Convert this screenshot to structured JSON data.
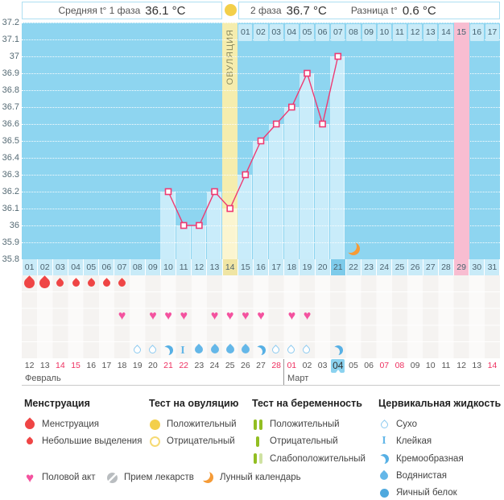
{
  "header": {
    "unit": "°C",
    "phase1_label": "Средняя t° 1 фаза",
    "phase1_value": "36.1 °C",
    "phase2_label": "2 фаза",
    "phase2_value": "36.7 °C",
    "diff_label": "Разница t°",
    "diff_value": "0.6 °C"
  },
  "colors": {
    "chart_bg": "#8ed5f0",
    "bar": "#c9ecfa",
    "bar_ovulation": "#fbf5d0",
    "band_ovulation": "#f5edae",
    "band_pink": "#f8bdd1",
    "cell": "#c9ebf8",
    "cell_today": "#7ecbea",
    "cell_ovulation": "#f0e5a4",
    "cell_pink": "#f8bdd1",
    "temp_line": "#ee3a72",
    "menses": "#ef4545",
    "heart": "#f4529f",
    "ovu_yellow": "#f3cf4a",
    "ovu_yellow_light": "#f6da74",
    "preg_green": "#92be22",
    "preg_green_light": "#cfe2a2",
    "cv_outline": "#8ccaf0",
    "cv_creamy": "#57b0e5",
    "cv_watery": "#64b7e8",
    "cv_egg": "#4fa9de",
    "moon": "#f59b37",
    "date_red": "#ee3060",
    "pill": "#b9bdc0",
    "today_date_bg": "#8bd2ef"
  },
  "chart_data": {
    "type": "line",
    "ylabel": "°C",
    "ylim": [
      35.8,
      37.2
    ],
    "ystep": 0.1,
    "grid": "dotted-white",
    "day_labels": [
      "01",
      "02",
      "03",
      "04",
      "05",
      "06",
      "07",
      "08",
      "09",
      "10",
      "11",
      "12",
      "13",
      "14",
      "15",
      "16",
      "17",
      "18",
      "19",
      "20",
      "21",
      "22",
      "23",
      "24",
      "25",
      "26",
      "27",
      "28",
      "29",
      "30",
      "31"
    ],
    "series": [
      {
        "name": "basal-temperature",
        "points": [
          [
            10,
            36.2
          ],
          [
            11,
            36.0
          ],
          [
            12,
            36.0
          ],
          [
            13,
            36.2
          ],
          [
            14,
            36.1
          ],
          [
            15,
            36.3
          ],
          [
            16,
            36.5
          ],
          [
            17,
            36.6
          ],
          [
            18,
            36.7
          ],
          [
            19,
            36.9
          ],
          [
            20,
            36.6
          ],
          [
            21,
            37.0
          ]
        ]
      }
    ],
    "ovulation_day": 14,
    "ovulation_label": "ОВУЛЯЦИЯ",
    "today_day": 21,
    "pink_column_day": 29,
    "moon_day": 22,
    "dpo_labels": [
      "01",
      "02",
      "03",
      "04",
      "05",
      "06",
      "07",
      "08",
      "09",
      "10",
      "11",
      "12",
      "13",
      "14",
      "15",
      "16",
      "17"
    ],
    "dpo_start_day": 15,
    "dpo_highlighted": "15"
  },
  "events": {
    "menstruation": [
      {
        "day": 1,
        "size": "large"
      },
      {
        "day": 2,
        "size": "large"
      },
      {
        "day": 3,
        "size": "small"
      },
      {
        "day": 4,
        "size": "small"
      },
      {
        "day": 5,
        "size": "small"
      },
      {
        "day": 6,
        "size": "small"
      },
      {
        "day": 7,
        "size": "small"
      }
    ],
    "intercourse_days": [
      7,
      9,
      10,
      11,
      13,
      14,
      15,
      16,
      18,
      19
    ],
    "cervical": [
      {
        "day": 8,
        "type": "dry"
      },
      {
        "day": 9,
        "type": "dry"
      },
      {
        "day": 10,
        "type": "creamy"
      },
      {
        "day": 11,
        "type": "sticky"
      },
      {
        "day": 12,
        "type": "watery"
      },
      {
        "day": 13,
        "type": "watery"
      },
      {
        "day": 14,
        "type": "watery"
      },
      {
        "day": 15,
        "type": "watery"
      },
      {
        "day": 16,
        "type": "creamy"
      },
      {
        "day": 17,
        "type": "dry"
      },
      {
        "day": 18,
        "type": "dry"
      },
      {
        "day": 19,
        "type": "dry"
      },
      {
        "day": 21,
        "type": "creamy"
      }
    ]
  },
  "calendar": {
    "months": [
      {
        "name": "Февраль"
      },
      {
        "name": "Март"
      }
    ],
    "march_start_index": 17,
    "dates": [
      {
        "d": "12"
      },
      {
        "d": "13"
      },
      {
        "d": "14",
        "red": true
      },
      {
        "d": "15",
        "red": true
      },
      {
        "d": "16"
      },
      {
        "d": "17"
      },
      {
        "d": "18"
      },
      {
        "d": "19"
      },
      {
        "d": "20"
      },
      {
        "d": "21",
        "red": true
      },
      {
        "d": "22",
        "red": true
      },
      {
        "d": "23"
      },
      {
        "d": "24"
      },
      {
        "d": "25"
      },
      {
        "d": "26"
      },
      {
        "d": "27"
      },
      {
        "d": "28",
        "red": true
      },
      {
        "d": "01",
        "red": true
      },
      {
        "d": "02"
      },
      {
        "d": "03"
      },
      {
        "d": "04",
        "today": true
      },
      {
        "d": "05"
      },
      {
        "d": "06"
      },
      {
        "d": "07",
        "red": true
      },
      {
        "d": "08",
        "red": true
      },
      {
        "d": "09"
      },
      {
        "d": "10"
      },
      {
        "d": "11"
      },
      {
        "d": "12"
      },
      {
        "d": "13"
      },
      {
        "d": "14",
        "red": true
      }
    ]
  },
  "legend": {
    "groups": [
      {
        "title": "Менструация",
        "items": [
          {
            "icon": "menses-large",
            "label": "Менструация"
          },
          {
            "icon": "menses-small",
            "label": "Небольшие выделения"
          }
        ]
      },
      {
        "title": "Тест на овуляцию",
        "items": [
          {
            "icon": "ovulation-positive",
            "label": "Положительный"
          },
          {
            "icon": "ovulation-negative",
            "label": "Отрицательный"
          }
        ]
      },
      {
        "title": "Тест на беременность",
        "items": [
          {
            "icon": "pregnancy-positive",
            "label": "Положительный"
          },
          {
            "icon": "pregnancy-negative",
            "label": "Отрицательный"
          },
          {
            "icon": "pregnancy-weak",
            "label": "Слабоположительный"
          }
        ]
      },
      {
        "title": "Цервикальная жидкость",
        "items": [
          {
            "icon": "cervical-dry",
            "label": "Сухо"
          },
          {
            "icon": "cervical-sticky",
            "label": "Клейкая"
          },
          {
            "icon": "cervical-creamy",
            "label": "Кремообразная"
          },
          {
            "icon": "cervical-watery",
            "label": "Водянистая"
          },
          {
            "icon": "cervical-eggwhite",
            "label": "Яичный белок"
          }
        ]
      }
    ],
    "footer": [
      {
        "icon": "intercourse",
        "label": "Половой акт"
      },
      {
        "icon": "medication",
        "label": "Прием лекарств"
      },
      {
        "icon": "moon",
        "label": "Лунный календарь"
      }
    ]
  }
}
